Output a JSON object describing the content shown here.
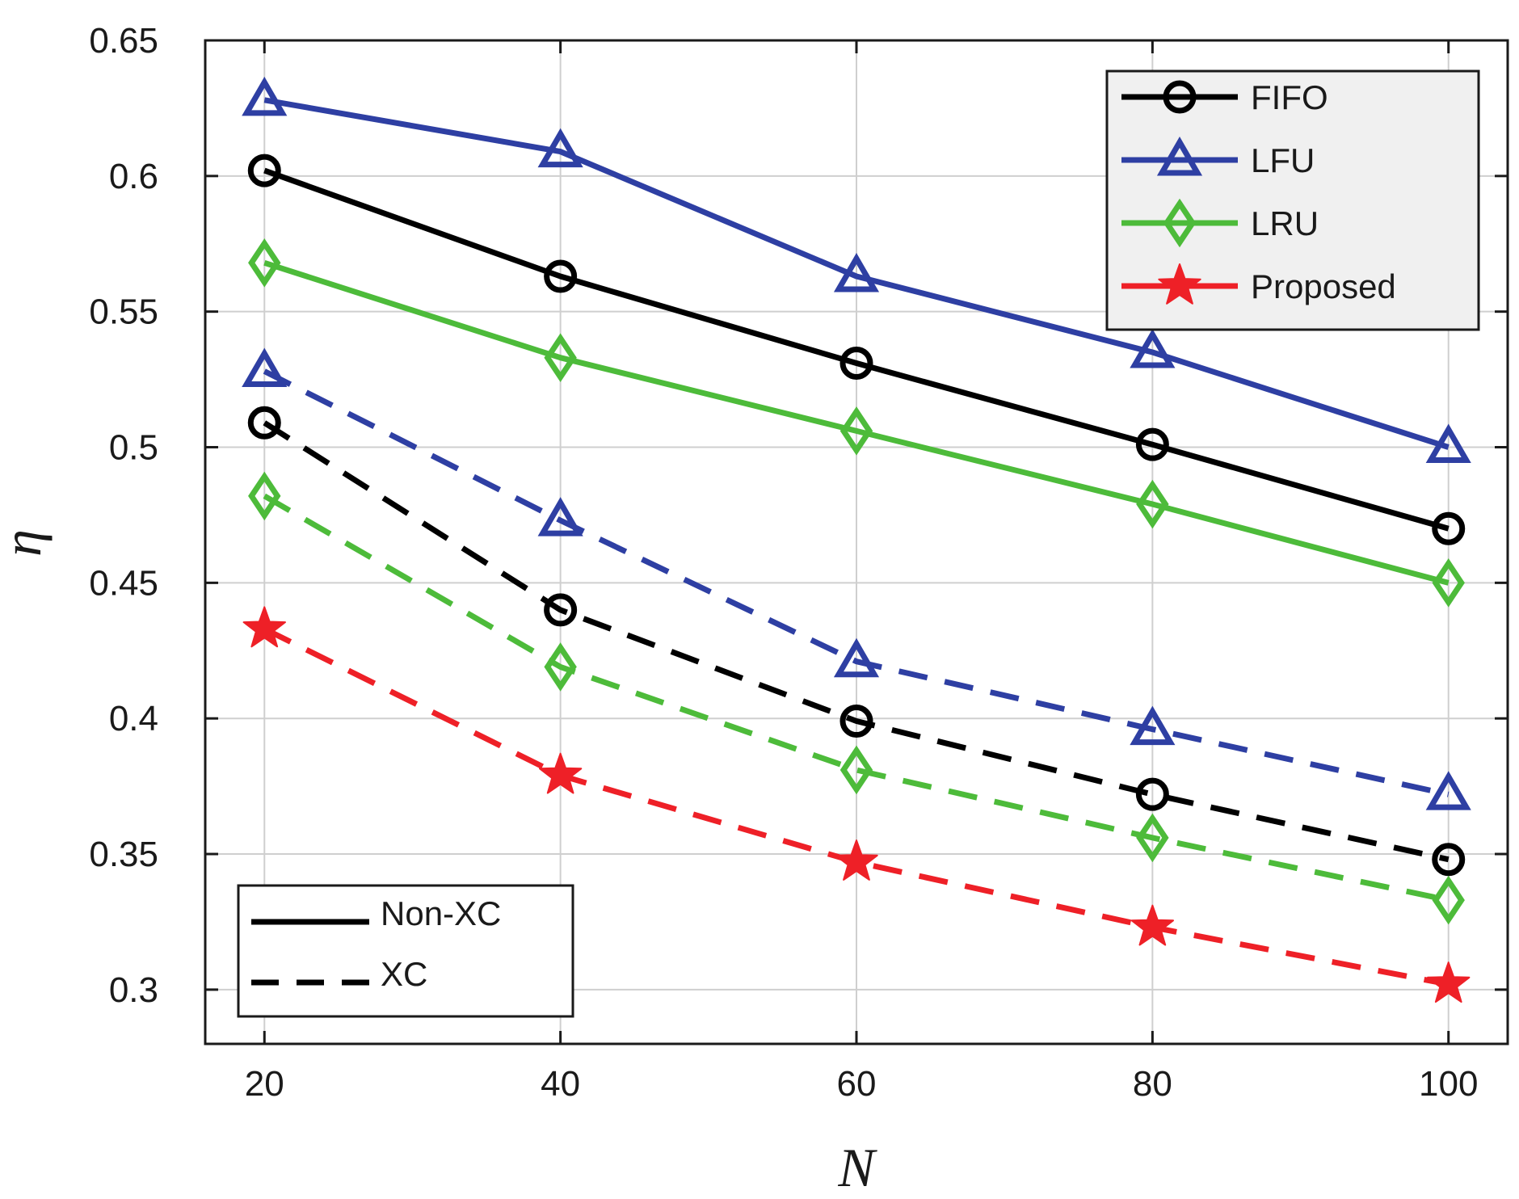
{
  "chart_data": {
    "type": "line",
    "xlabel": "N",
    "ylabel": "η",
    "xlim": [
      16,
      104
    ],
    "ylim": [
      0.28,
      0.65
    ],
    "xticks": [
      "20",
      "40",
      "60",
      "80",
      "100"
    ],
    "xtick_values": [
      20,
      40,
      60,
      80,
      100
    ],
    "yticks": [
      "0.3",
      "0.35",
      "0.4",
      "0.45",
      "0.5",
      "0.55",
      "0.6",
      "0.65"
    ],
    "ytick_values": [
      0.3,
      0.35,
      0.4,
      0.45,
      0.5,
      0.55,
      0.6,
      0.65
    ],
    "grid": true,
    "x": [
      20,
      40,
      60,
      80,
      100
    ],
    "series": [
      {
        "name": "FIFO",
        "scheme": "Non-XC",
        "color": "#000000",
        "marker": "circle",
        "style": "solid",
        "values": [
          0.602,
          0.563,
          0.531,
          0.501,
          0.47
        ]
      },
      {
        "name": "LFU",
        "scheme": "Non-XC",
        "color": "#2e3fa3",
        "marker": "triangle",
        "style": "solid",
        "values": [
          0.628,
          0.609,
          0.563,
          0.535,
          0.5
        ]
      },
      {
        "name": "LRU",
        "scheme": "Non-XC",
        "color": "#4dbb3a",
        "marker": "diamond",
        "style": "solid",
        "values": [
          0.568,
          0.533,
          0.506,
          0.479,
          0.45
        ]
      },
      {
        "name": "FIFO",
        "scheme": "XC",
        "color": "#000000",
        "marker": "circle",
        "style": "dashed",
        "values": [
          0.509,
          0.44,
          0.399,
          0.372,
          0.348
        ]
      },
      {
        "name": "LFU",
        "scheme": "XC",
        "color": "#2e3fa3",
        "marker": "triangle",
        "style": "dashed",
        "values": [
          0.528,
          0.473,
          0.421,
          0.396,
          0.372
        ]
      },
      {
        "name": "LRU",
        "scheme": "XC",
        "color": "#4dbb3a",
        "marker": "diamond",
        "style": "dashed",
        "values": [
          0.482,
          0.419,
          0.381,
          0.356,
          0.333
        ]
      },
      {
        "name": "Proposed",
        "scheme": "XC",
        "color": "#ee2027",
        "marker": "star",
        "style": "dashed",
        "values": [
          0.433,
          0.379,
          0.347,
          0.323,
          0.302
        ]
      }
    ],
    "legend_methods": {
      "placement": "top-right",
      "entries": [
        {
          "label": "FIFO",
          "color": "#000000",
          "marker": "circle"
        },
        {
          "label": "LFU",
          "color": "#2e3fa3",
          "marker": "triangle"
        },
        {
          "label": "LRU",
          "color": "#4dbb3a",
          "marker": "diamond"
        },
        {
          "label": "Proposed",
          "color": "#ee2027",
          "marker": "star"
        }
      ]
    },
    "legend_schemes": {
      "placement": "bottom-left",
      "entries": [
        {
          "label": "Non-XC",
          "style": "solid"
        },
        {
          "label": "XC",
          "style": "dashed"
        }
      ]
    }
  }
}
